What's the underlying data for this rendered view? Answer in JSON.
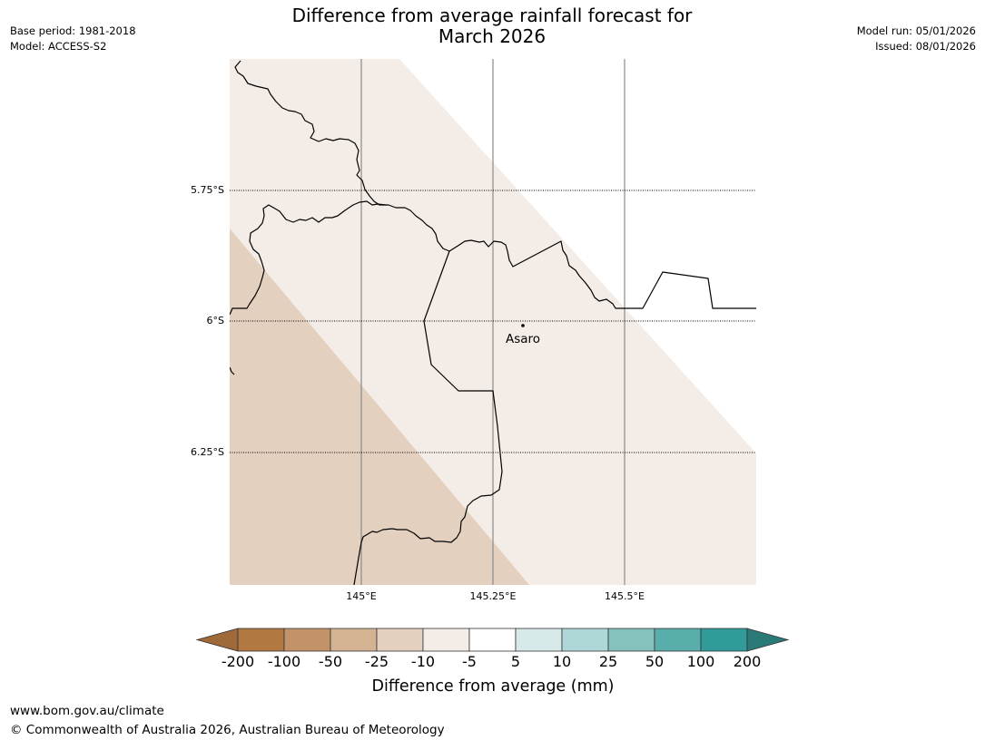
{
  "title_line1": "Difference from average rainfall forecast for",
  "title_line2": "March 2026",
  "base_period": "Base period: 1981-2018",
  "model": "Model: ACCESS-S2",
  "model_run": "Model run: 05/01/2026",
  "issued": "Issued: 08/01/2026",
  "map": {
    "lat_labels": [
      "5.75°S",
      "6°S",
      "6.25°S"
    ],
    "lon_labels": [
      "145°E",
      "145.25°E",
      "145.5°E"
    ],
    "place": {
      "name": "Asaro"
    },
    "regions": [
      {
        "category": "-25 to -10",
        "color": "#e3d0be"
      },
      {
        "category": "-10 to -5",
        "color": "#f4ece6"
      },
      {
        "category": "-5 to 5",
        "color": "#ffffff"
      }
    ]
  },
  "colorbar": {
    "title": "Difference from average (mm)",
    "ticks": [
      "-200",
      "-100",
      "-50",
      "-25",
      "-10",
      "-5",
      "5",
      "10",
      "25",
      "50",
      "100",
      "200"
    ],
    "colors": [
      "#a0693a",
      "#b17941",
      "#c29369",
      "#d3b391",
      "#e3d0be",
      "#f4ece6",
      "#ffffff",
      "#d8e9e9",
      "#afd7d7",
      "#85c1bd",
      "#59adab",
      "#309b98",
      "#2a7b78"
    ]
  },
  "footer_url": "www.bom.gov.au/climate",
  "footer_copyright": "© Commonwealth of Australia 2026, Australian Bureau of Meteorology"
}
